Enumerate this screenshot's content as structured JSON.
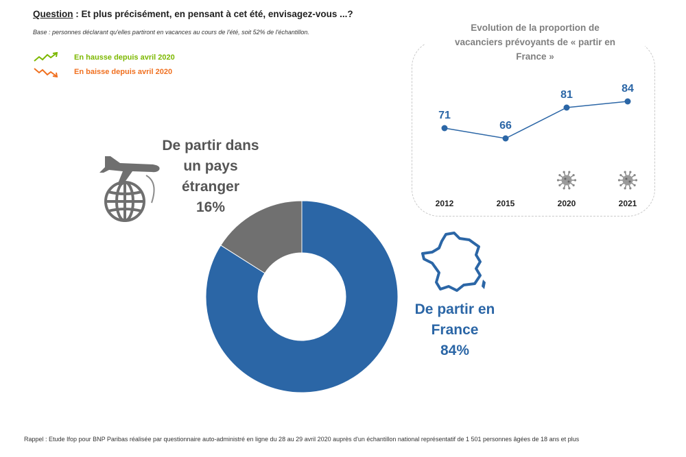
{
  "question": {
    "label": "Question",
    "text": " : Et plus précisément, en pensant à cet été, envisagez-vous ...?"
  },
  "base_note": "Base : personnes déclarant qu'elles partiront en vacances au cours de l'été, soit 52% de l'échantillon.",
  "legend": {
    "up": {
      "label": "En hausse depuis avril 2020",
      "color": "#7cb800"
    },
    "down": {
      "label": "En baisse depuis avril 2020",
      "color": "#f07020"
    }
  },
  "colors": {
    "france": "#2b66a6",
    "abroad": "#707070"
  },
  "labels": {
    "abroad": {
      "line1": "De partir dans",
      "line2": "un pays",
      "line3": "étranger",
      "value": "16%"
    },
    "france": {
      "line1": "De partir en",
      "line2": "France",
      "value": "84%"
    }
  },
  "chart_data": [
    {
      "type": "pie",
      "donut": true,
      "categories": [
        "De partir en France",
        "De partir dans un pays étranger"
      ],
      "values": [
        84,
        16
      ],
      "unit": "%"
    },
    {
      "type": "line",
      "title": "Evolution de la proportion de vacanciers prévoyants de « partir en France »",
      "title_lines": [
        "Evolution de la proportion de",
        "vacanciers prévoyants de « partir en",
        "France »"
      ],
      "x": [
        "2012",
        "2015",
        "2020",
        "2021"
      ],
      "values": [
        71,
        66,
        81,
        84
      ],
      "ylim": [
        60,
        90
      ],
      "virus_icon_years": [
        "2020",
        "2021"
      ]
    }
  ],
  "footnote": "Rappel : Etude Ifop pour BNP Paribas réalisée par questionnaire auto-administré en ligne du 28 au 29 avril 2020 auprès d'un échantillon national représentatif de 1 501 personnes âgées de 18 ans et plus"
}
